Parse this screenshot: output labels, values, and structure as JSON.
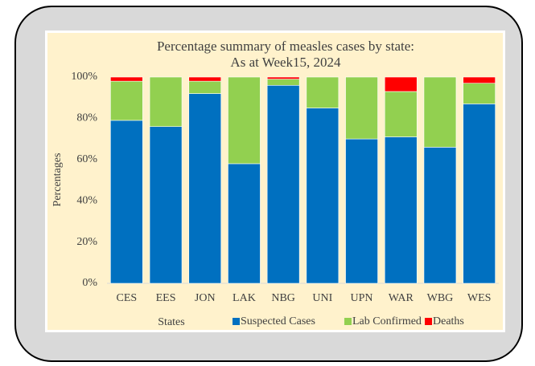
{
  "chart_data": {
    "type": "stacked_bar",
    "title": "Percentage summary of measles cases by state: As at Week15, 2024",
    "y_label": "Percentages",
    "x_label": "States",
    "categories": [
      "CES",
      "EES",
      "JON",
      "LAK",
      "NBG",
      "UNI",
      "UPN",
      "WAR",
      "WBG",
      "WES"
    ],
    "series": [
      {
        "name": "Suspected Cases",
        "color": "#0070c0",
        "values": [
          79,
          76,
          92,
          58,
          96,
          85,
          70,
          71,
          66,
          87
        ]
      },
      {
        "name": "Lab Confirmed",
        "color": "#92d050",
        "values": [
          19,
          24,
          6,
          42,
          3,
          15,
          30,
          22,
          34,
          10
        ]
      },
      {
        "name": "Deaths",
        "color": "#ff0000",
        "values": [
          2,
          0,
          2,
          0,
          1,
          0,
          0,
          7,
          0,
          3
        ]
      }
    ],
    "ylim": [
      0,
      100
    ],
    "yticks": [
      {
        "value": 0,
        "label": "0%"
      },
      {
        "value": 20,
        "label": "20%"
      },
      {
        "value": 40,
        "label": "40%"
      },
      {
        "value": 60,
        "label": "60%"
      },
      {
        "value": 80,
        "label": "80%"
      },
      {
        "value": 100,
        "label": "100%"
      }
    ],
    "grid": false
  }
}
